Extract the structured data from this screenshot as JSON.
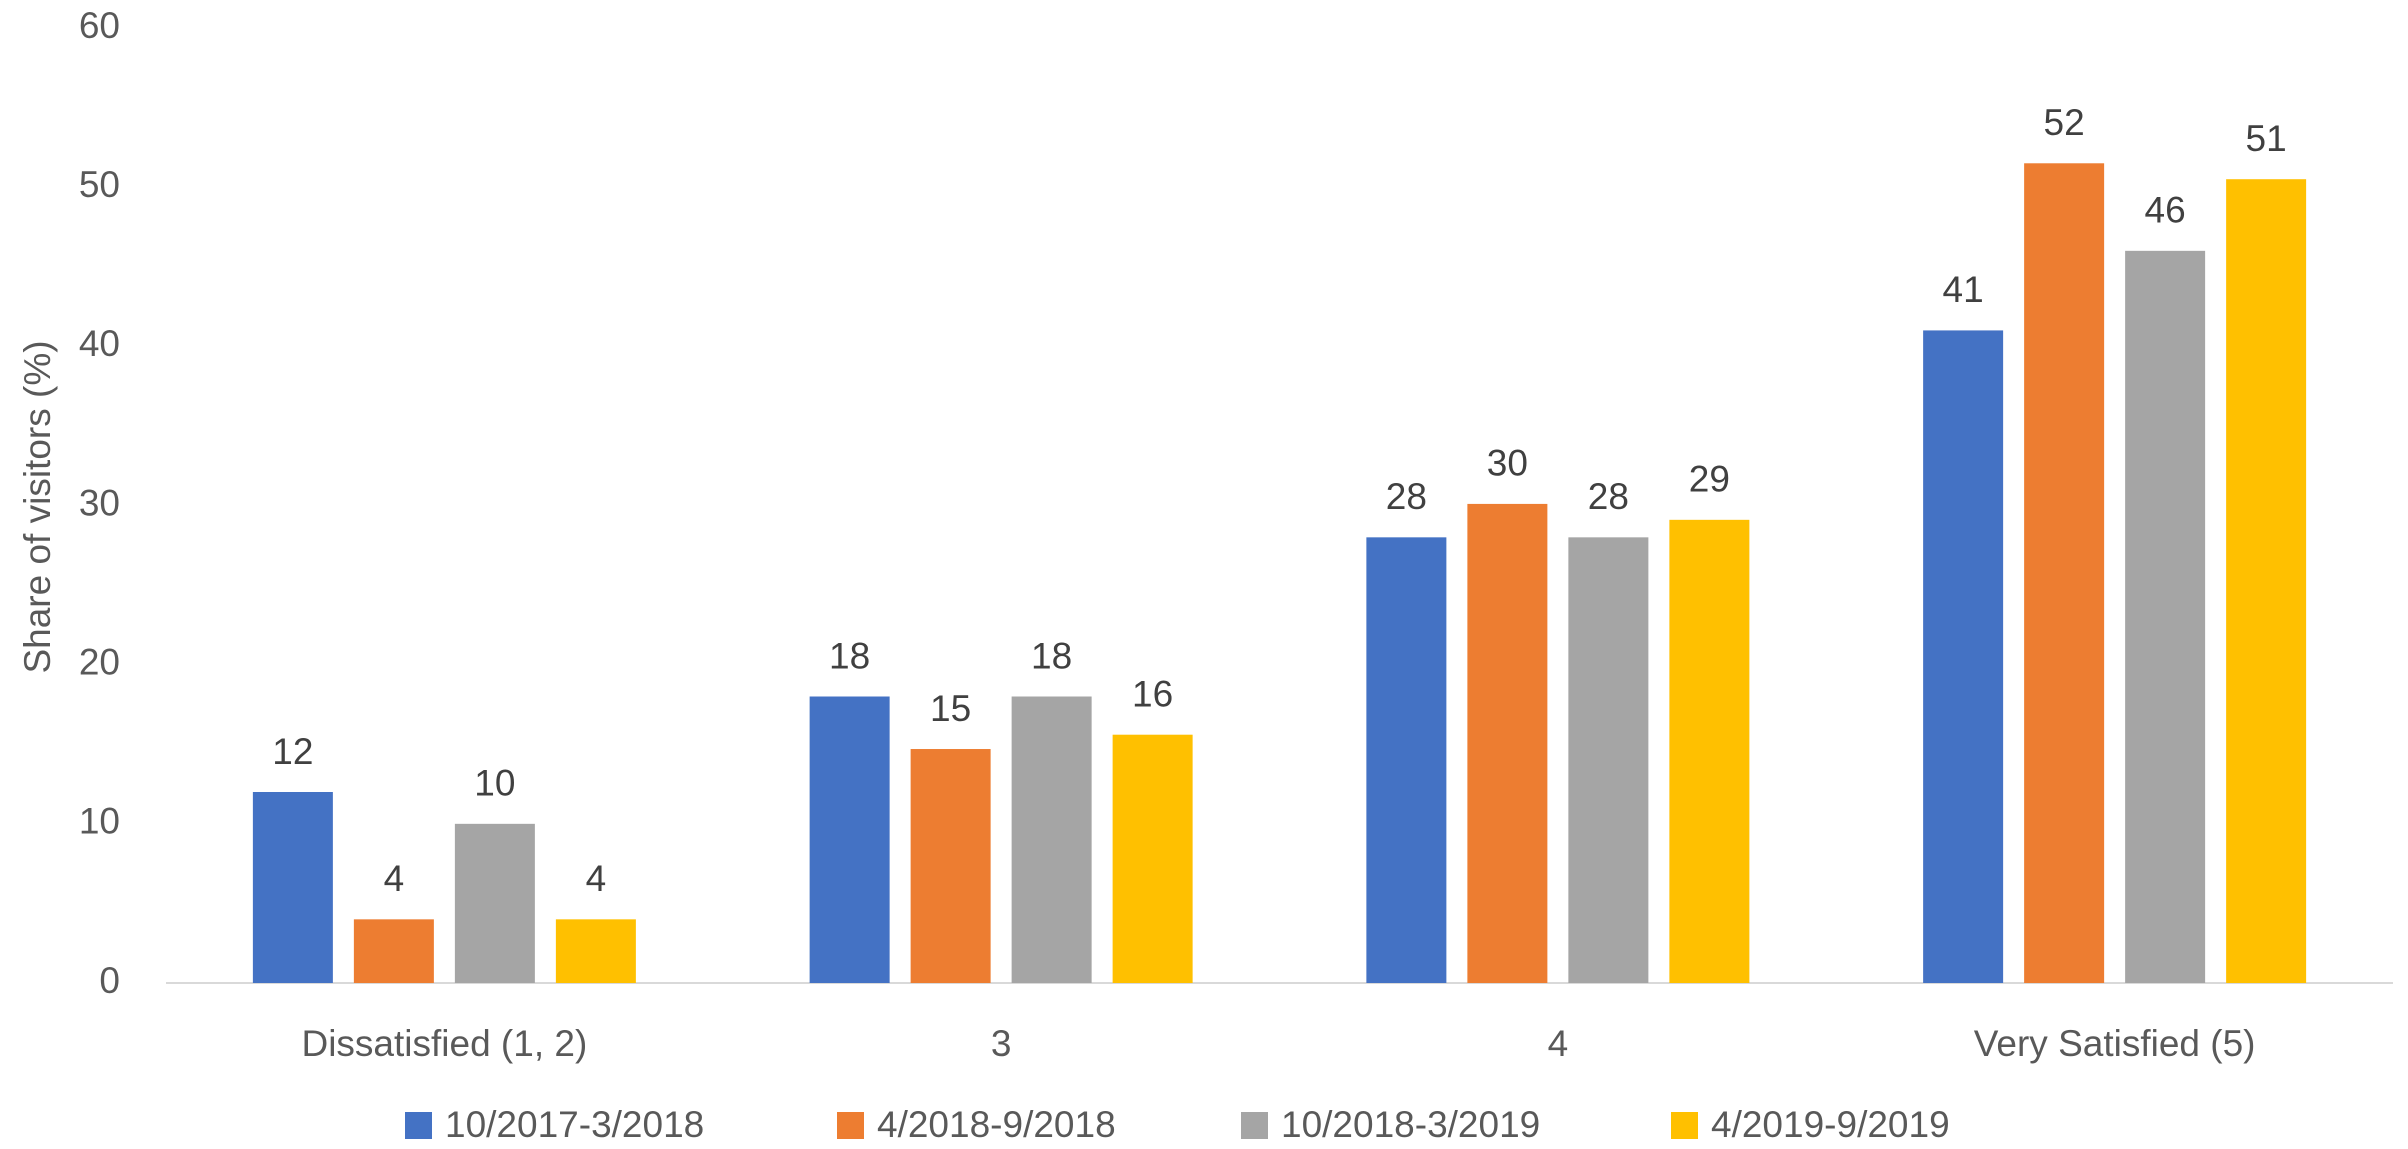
{
  "chart_data": {
    "type": "bar",
    "y_label": "Share of visitors (%)",
    "categories": [
      "Dissatisfied (1, 2)",
      "3",
      "4",
      "Very Satisfied (5)"
    ],
    "series": [
      {
        "name": "10/2017-3/2018",
        "color": "#4472c4",
        "values": [
          12,
          18,
          28,
          41
        ]
      },
      {
        "name": "4/2018-9/2018",
        "color": "#ed7d31",
        "values": [
          4,
          14.7,
          30.1,
          51.5
        ],
        "value_labels": [
          "4",
          "15",
          "30",
          "52"
        ]
      },
      {
        "name": "10/2018-3/2019",
        "color": "#a5a5a5",
        "values": [
          10,
          18,
          28,
          46
        ]
      },
      {
        "name": "4/2019-9/2019",
        "color": "#ffc000",
        "values": [
          4,
          15.6,
          29.1,
          50.5
        ],
        "value_labels": [
          "4",
          "16",
          "29",
          "51"
        ]
      }
    ],
    "ylim": [
      0,
      60
    ],
    "yticks": [
      0,
      10,
      20,
      30,
      40,
      50,
      60
    ],
    "grid": false,
    "legend": "bottom"
  }
}
